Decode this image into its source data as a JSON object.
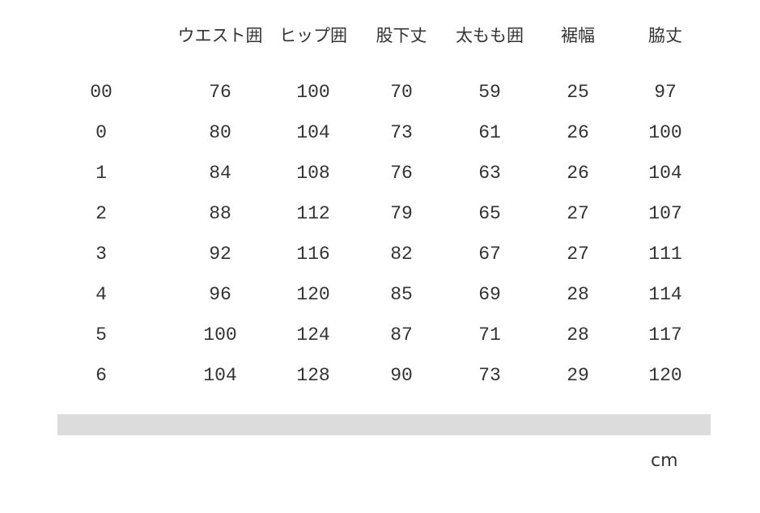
{
  "headers": [
    "",
    "ウエスト囲",
    "ヒップ囲",
    "股下丈",
    "太もも囲",
    "裾幅",
    "脇丈"
  ],
  "rows": [
    [
      "00",
      "76",
      "100",
      "70",
      "59",
      "25",
      "97"
    ],
    [
      "0",
      "80",
      "104",
      "73",
      "61",
      "26",
      "100"
    ],
    [
      "1",
      "84",
      "108",
      "76",
      "63",
      "26",
      "104"
    ],
    [
      "2",
      "88",
      "112",
      "79",
      "65",
      "27",
      "107"
    ],
    [
      "3",
      "92",
      "116",
      "82",
      "67",
      "27",
      "111"
    ],
    [
      "4",
      "96",
      "120",
      "85",
      "69",
      "28",
      "114"
    ],
    [
      "5",
      "100",
      "124",
      "87",
      "71",
      "28",
      "117"
    ],
    [
      "6",
      "104",
      "128",
      "90",
      "73",
      "29",
      "120"
    ]
  ],
  "unit": "cm"
}
